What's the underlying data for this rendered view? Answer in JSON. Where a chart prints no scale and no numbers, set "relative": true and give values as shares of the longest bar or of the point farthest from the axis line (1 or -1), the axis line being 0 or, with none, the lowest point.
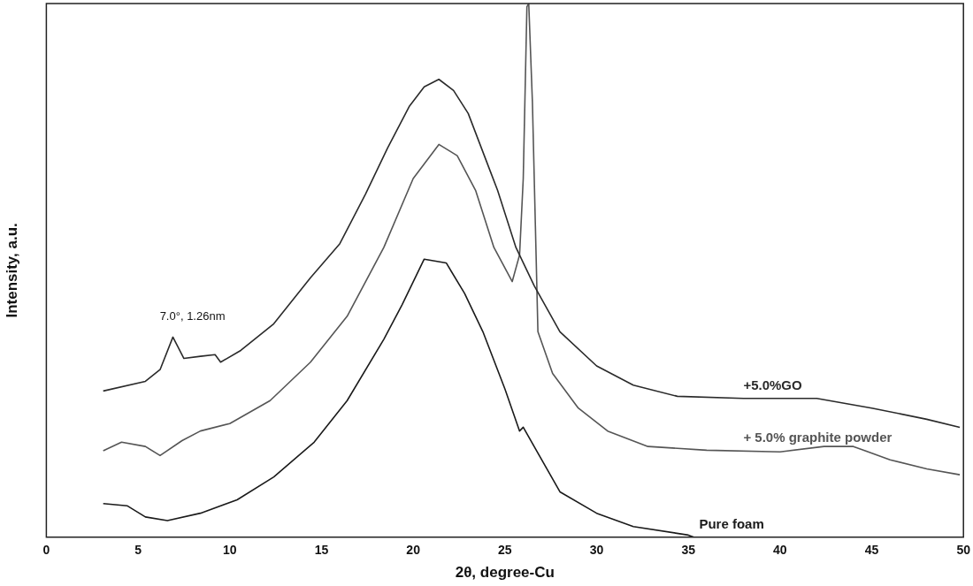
{
  "chart_data": {
    "type": "line",
    "xlabel": "2θ, degree-Cu",
    "ylabel": "Intensity, a.u.",
    "relative": true,
    "xlim": [
      0,
      50
    ],
    "xticks": [
      0,
      5,
      10,
      15,
      20,
      25,
      30,
      35,
      40,
      45,
      50
    ],
    "grid": false,
    "legend": false,
    "marker": "none",
    "line_style": "solid",
    "annotations": [
      {
        "text": "7.0°, 1.26nm",
        "x": 7,
        "y": 0.375
      }
    ],
    "series": [
      {
        "name": "+5.0%GO",
        "color": "#2a2a2a",
        "x": [
          3.1,
          5.4,
          6.2,
          6.9,
          7.5,
          8.4,
          9.2,
          9.5,
          10.6,
          12.4,
          14.4,
          16,
          17.4,
          18.6,
          19.8,
          20.6,
          21.4,
          22.2,
          23,
          24.2,
          24.6,
          25.6,
          26.6,
          28,
          30,
          32,
          34.4,
          38,
          42,
          45,
          48,
          49.8
        ],
        "values": [
          0.274,
          0.292,
          0.314,
          0.375,
          0.335,
          0.339,
          0.342,
          0.328,
          0.35,
          0.4,
          0.486,
          0.55,
          0.643,
          0.729,
          0.808,
          0.844,
          0.858,
          0.837,
          0.794,
          0.686,
          0.65,
          0.543,
          0.471,
          0.385,
          0.321,
          0.285,
          0.264,
          0.26,
          0.26,
          0.242,
          0.221,
          0.206
        ]
      },
      {
        "name": "+ 5.0% graphite powder",
        "color": "#555555",
        "x": [
          3.1,
          4.1,
          5.4,
          6.2,
          7.4,
          8.4,
          10,
          12.2,
          14.4,
          16.4,
          18.4,
          20,
          21.4,
          22.4,
          23.4,
          24.4,
          25.4,
          25.8,
          26,
          26.2,
          26.3,
          26.5,
          26.7,
          26.8,
          27.6,
          29,
          30.6,
          32.8,
          36,
          40,
          42.4,
          44,
          46,
          48,
          49.8
        ],
        "values": [
          0.162,
          0.178,
          0.17,
          0.153,
          0.181,
          0.199,
          0.213,
          0.256,
          0.328,
          0.414,
          0.543,
          0.672,
          0.736,
          0.715,
          0.65,
          0.543,
          0.479,
          0.529,
          0.672,
          0.994,
          1,
          0.815,
          0.529,
          0.385,
          0.307,
          0.242,
          0.199,
          0.17,
          0.163,
          0.16,
          0.17,
          0.17,
          0.145,
          0.128,
          0.117
        ]
      },
      {
        "name": "Pure foam",
        "color": "#1a1a1a",
        "x": [
          3.1,
          4.4,
          5.4,
          6.6,
          8.4,
          10.4,
          12.4,
          14.6,
          16.4,
          18.4,
          19.4,
          20.6,
          21.8,
          22.8,
          23.8,
          25,
          25.8,
          26,
          28,
          30,
          32,
          35,
          35.3
        ],
        "values": [
          0.063,
          0.059,
          0.038,
          0.031,
          0.045,
          0.07,
          0.113,
          0.178,
          0.256,
          0.371,
          0.436,
          0.521,
          0.514,
          0.457,
          0.385,
          0.278,
          0.199,
          0.206,
          0.085,
          0.045,
          0.02,
          0.004,
          0
        ]
      }
    ]
  }
}
